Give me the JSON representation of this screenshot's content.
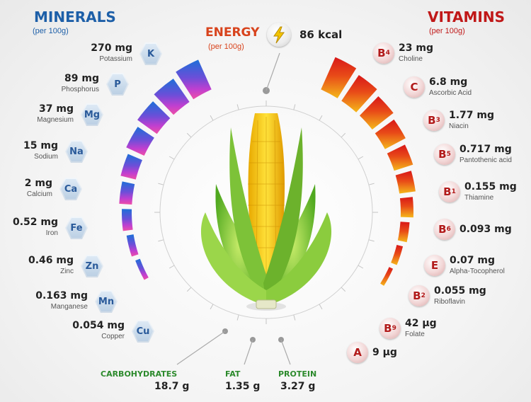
{
  "minerals": {
    "title": "MINERALS",
    "subtitle": "(per 100g)",
    "items": [
      {
        "symbol": "K",
        "amount": "270 mg",
        "name": "Potassium"
      },
      {
        "symbol": "P",
        "amount": "89 mg",
        "name": "Phosphorus"
      },
      {
        "symbol": "Mg",
        "amount": "37 mg",
        "name": "Magnesium"
      },
      {
        "symbol": "Na",
        "amount": "15 mg",
        "name": "Sodium"
      },
      {
        "symbol": "Ca",
        "amount": "2 mg",
        "name": "Calcium"
      },
      {
        "symbol": "Fe",
        "amount": "0.52 mg",
        "name": "Iron"
      },
      {
        "symbol": "Zn",
        "amount": "0.46 mg",
        "name": "Zinc"
      },
      {
        "symbol": "Mn",
        "amount": "0.163 mg",
        "name": "Manganese"
      },
      {
        "symbol": "Cu",
        "amount": "0.054 mg",
        "name": "Copper"
      }
    ]
  },
  "vitamins": {
    "title": "VITAMINS",
    "subtitle": "(per 100g)",
    "items": [
      {
        "letter": "B",
        "index": "4",
        "amount": "23 mg",
        "name": "Choline"
      },
      {
        "letter": "C",
        "index": "",
        "amount": "6.8 mg",
        "name": "Ascorbic Acid"
      },
      {
        "letter": "B",
        "index": "3",
        "amount": "1.77 mg",
        "name": "Niacin"
      },
      {
        "letter": "B",
        "index": "5",
        "amount": "0.717 mg",
        "name": "Pantothenic acid"
      },
      {
        "letter": "B",
        "index": "1",
        "amount": "0.155 mg",
        "name": "Thiamine"
      },
      {
        "letter": "B",
        "index": "6",
        "amount": "0.093 mg",
        "name": ""
      },
      {
        "letter": "E",
        "index": "",
        "amount": "0.07 mg",
        "name": "Alpha-Tocopherol"
      },
      {
        "letter": "B",
        "index": "2",
        "amount": "0.055 mg",
        "name": "Riboflavin"
      },
      {
        "letter": "B",
        "index": "9",
        "amount": "42 µg",
        "name": "Folate"
      },
      {
        "letter": "A",
        "index": "",
        "amount": "9 µg",
        "name": ""
      }
    ]
  },
  "energy": {
    "label": "ENERGY",
    "subtitle": "(per 100g)",
    "value": "86 kcal"
  },
  "macros": [
    {
      "label": "CARBOHYDRATES",
      "value": "18.7 g"
    },
    {
      "label": "FAT",
      "value": "1.35 g"
    },
    {
      "label": "PROTEIN",
      "value": "3.27 g"
    }
  ],
  "colors": {
    "minerals_title": "#1d5fa8",
    "vitamins_title": "#c01818",
    "energy_label": "#d8431c",
    "macro_label": "#2c8a2c",
    "mineral_bar_gradient": [
      "#1d6fd8",
      "#6b4fd8",
      "#c03fd0",
      "#ef4fa5"
    ],
    "vitamin_bar_gradient": [
      "#d81818",
      "#e84a18",
      "#f0901a",
      "#f5b81a"
    ]
  },
  "icons": {
    "energy": "lightning-bolt-icon",
    "center": "corn-cob-icon"
  }
}
